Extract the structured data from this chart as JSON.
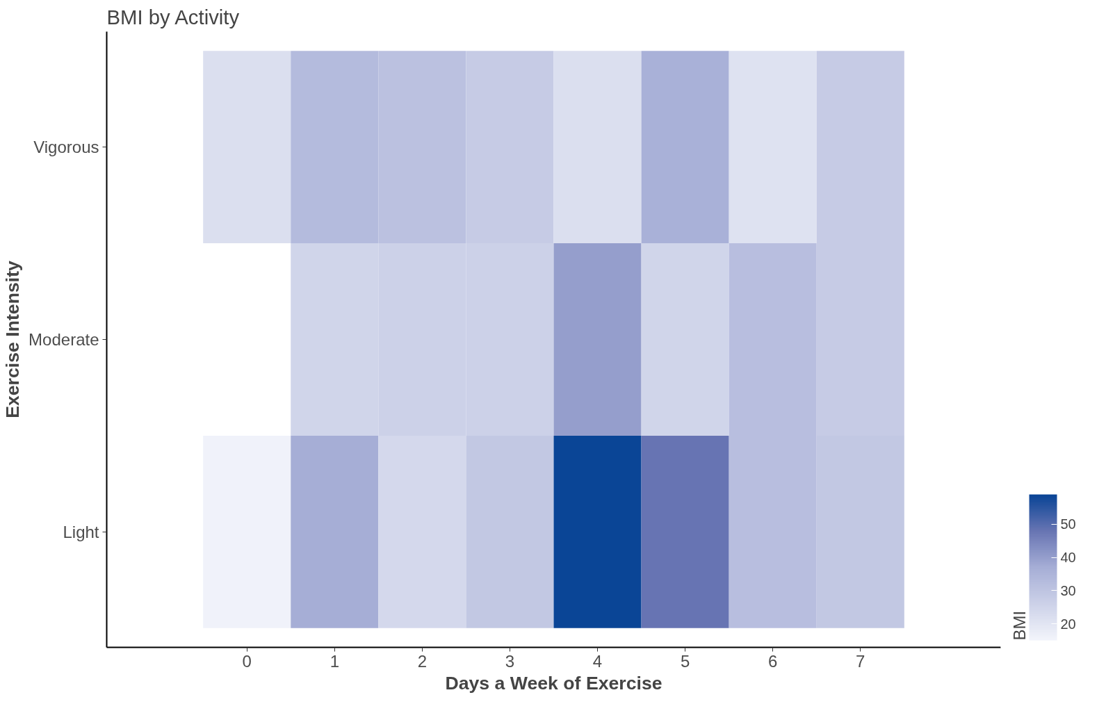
{
  "chart_data": {
    "type": "heatmap",
    "title": "BMI by Activity",
    "xlabel": "Days a Week of Exercise",
    "ylabel": "Exercise Intensity",
    "clabel": "BMI",
    "categories": [
      "0",
      "1",
      "2",
      "3",
      "4",
      "5",
      "6",
      "7"
    ],
    "y_categories": [
      "Vigorous",
      "Moderate",
      "Light"
    ],
    "cells": [
      [
        22,
        33,
        31,
        28,
        22,
        36,
        21,
        28
      ],
      [
        null,
        25,
        26,
        26,
        40,
        25,
        32,
        28
      ],
      [
        16,
        37,
        24,
        29,
        58.8,
        48,
        32,
        29
      ]
    ],
    "clim": [
      15,
      59
    ],
    "cticks": [
      20,
      30,
      40,
      50
    ],
    "grid": false
  }
}
